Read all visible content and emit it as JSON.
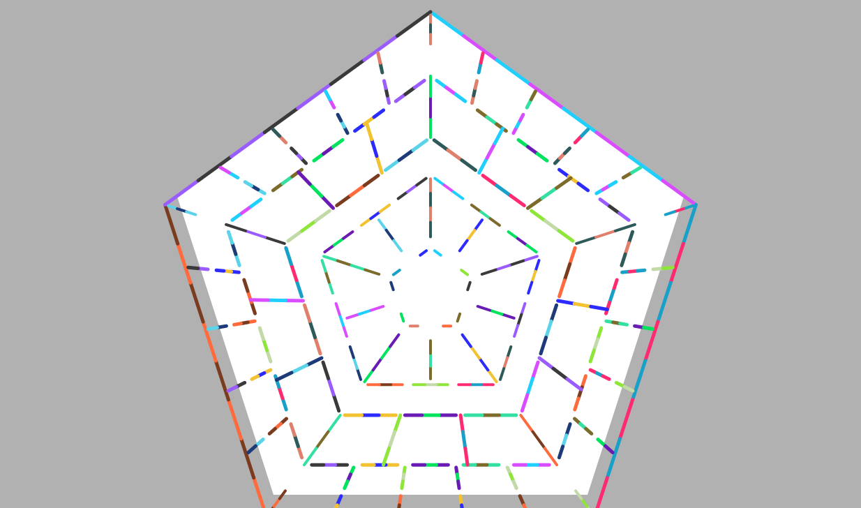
{
  "scene": {
    "name": "pentagon-maze-top-view",
    "background_color": "#b1b1b1",
    "floor_color": "#ffffff",
    "ring_count": 3,
    "sides": 5,
    "segments_per_side_outer": 5,
    "segments_per_side_middle": 3,
    "segments_per_side_inner": 1,
    "palette": [
      "#1fd0ff",
      "#7c6b2a",
      "#00e35c",
      "#2b2bff",
      "#9a5cff",
      "#2f5a5a",
      "#ff2a6f",
      "#8fe63a",
      "#ff6b3d",
      "#1c3b78",
      "#d94cff",
      "#34e0a1",
      "#6a1bb3",
      "#f2c230",
      "#3a3a3a",
      "#e07f6b",
      "#18a0c8",
      "#c2d9a8",
      "#7a3b1f",
      "#5bd3e8"
    ]
  }
}
